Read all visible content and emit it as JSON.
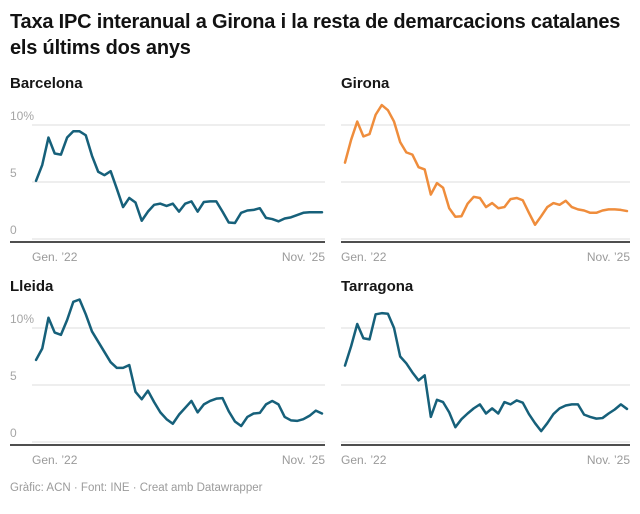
{
  "header": {
    "title": "Taxa IPC interanual a Girona i la resta de demarcacions catalanes els últims dos anys"
  },
  "footer": {
    "credit": "Gràfic: ACN · Font: INE · Creat amb Datawrapper"
  },
  "chart_data": {
    "type": "line",
    "layout": "small-multiples-2x2",
    "frequency": "monthly",
    "x_start": "Gener 2022",
    "x_end": "Novembre 2025",
    "n_points": 47,
    "unit": "%",
    "ylim": [
      0,
      12.6
    ],
    "grid": true,
    "highlight_color": "#ef8d3c",
    "base_color": "#16607a",
    "y_ticks": [
      {
        "value": 10,
        "label": "10%"
      },
      {
        "value": 5,
        "label": "5"
      },
      {
        "value": 0,
        "label": "0"
      }
    ],
    "x_axis": {
      "start_label": "Gen. ’22",
      "end_label": "Nov. ’25"
    },
    "series": [
      {
        "name": "Barcelona",
        "color": "#16607a",
        "values": [
          5.1,
          6.5,
          8.9,
          7.5,
          7.4,
          8.9,
          9.45,
          9.45,
          9.1,
          7.3,
          5.9,
          5.6,
          5.95,
          4.4,
          2.8,
          3.6,
          3.2,
          1.6,
          2.4,
          3.0,
          3.1,
          2.9,
          3.1,
          2.4,
          3.1,
          3.3,
          2.4,
          3.25,
          3.3,
          3.3,
          2.4,
          1.45,
          1.4,
          2.3,
          2.5,
          2.55,
          2.7,
          1.85,
          1.75,
          1.55,
          1.8,
          1.9,
          2.1,
          2.3,
          2.35,
          2.35,
          2.35
        ]
      },
      {
        "name": "Girona",
        "color": "#ef8d3c",
        "values": [
          6.7,
          8.7,
          10.3,
          9.0,
          9.2,
          10.9,
          11.75,
          11.3,
          10.3,
          8.5,
          7.6,
          7.4,
          6.3,
          6.1,
          3.9,
          4.9,
          4.5,
          2.7,
          1.95,
          2.0,
          3.1,
          3.7,
          3.6,
          2.8,
          3.15,
          2.7,
          2.8,
          3.5,
          3.6,
          3.4,
          2.3,
          1.25,
          2.0,
          2.8,
          3.15,
          3.0,
          3.35,
          2.8,
          2.6,
          2.5,
          2.3,
          2.3,
          2.5,
          2.6,
          2.6,
          2.55,
          2.45
        ]
      },
      {
        "name": "Lleida",
        "color": "#16607a",
        "values": [
          7.2,
          8.2,
          10.9,
          9.6,
          9.4,
          10.7,
          12.3,
          12.5,
          11.2,
          9.7,
          8.8,
          7.9,
          7.0,
          6.5,
          6.5,
          6.75,
          4.4,
          3.75,
          4.5,
          3.5,
          2.6,
          2.0,
          1.6,
          2.4,
          3.0,
          3.6,
          2.6,
          3.3,
          3.6,
          3.8,
          3.85,
          2.7,
          1.8,
          1.4,
          2.2,
          2.5,
          2.55,
          3.3,
          3.6,
          3.3,
          2.2,
          1.9,
          1.85,
          2.0,
          2.3,
          2.75,
          2.5
        ]
      },
      {
        "name": "Tarragona",
        "color": "#16607a",
        "values": [
          6.7,
          8.4,
          10.35,
          9.1,
          9.0,
          11.2,
          11.3,
          11.25,
          10.0,
          7.5,
          6.9,
          6.1,
          5.4,
          5.85,
          2.2,
          3.7,
          3.5,
          2.6,
          1.3,
          2.0,
          2.5,
          2.95,
          3.3,
          2.5,
          2.95,
          2.5,
          3.5,
          3.3,
          3.65,
          3.45,
          2.45,
          1.65,
          0.95,
          1.65,
          2.45,
          2.95,
          3.2,
          3.3,
          3.3,
          2.4,
          2.2,
          2.05,
          2.1,
          2.5,
          2.85,
          3.3,
          2.9
        ]
      }
    ]
  }
}
